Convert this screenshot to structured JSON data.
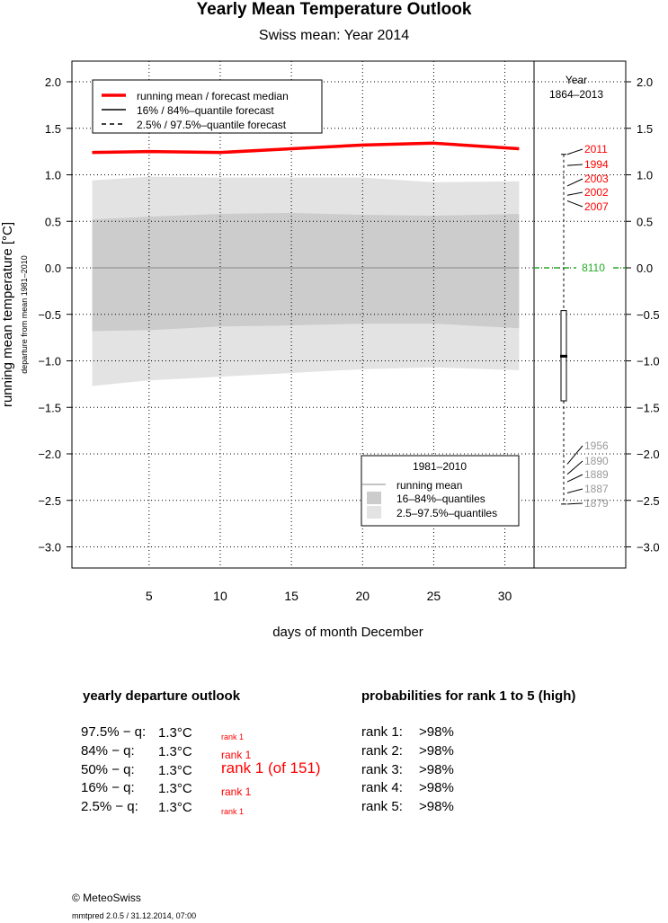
{
  "header": {
    "title": "Yearly Mean Temperature Outlook",
    "subtitle": "Swiss mean: Year 2014"
  },
  "chart_data": {
    "type": "area",
    "title": "Yearly Mean Temperature Outlook",
    "subtitle": "Swiss mean: Year 2014",
    "xlabel": "days of month December",
    "ylabel": "running mean temperature [°C]",
    "ylabel_sub": "departure from mean 1981–2010",
    "xlim": [
      0,
      32
    ],
    "ylim": [
      -3.2,
      2.2
    ],
    "x_ticks": [
      5,
      10,
      15,
      20,
      25,
      30
    ],
    "y_ticks": [
      2.0,
      1.5,
      1.0,
      0.5,
      0.0,
      -0.5,
      -1.0,
      -1.5,
      -2.0,
      -2.5,
      -3.0
    ],
    "y_tick_labels": [
      "2.0",
      "1.5",
      "1.0",
      "0.5",
      "0.0",
      "−0.5",
      "−1.0",
      "−1.5",
      "−2.0",
      "−2.5",
      "−3.0"
    ],
    "grid": true,
    "x": [
      1,
      5,
      10,
      15,
      20,
      25,
      31
    ],
    "series": [
      {
        "name": "running mean / forecast median",
        "color": "#ff0000",
        "values": [
          1.24,
          1.25,
          1.24,
          1.28,
          1.32,
          1.34,
          1.28
        ]
      },
      {
        "name": "running mean",
        "color": "#888888",
        "values": [
          0.0,
          0.0,
          0.0,
          0.0,
          0.0,
          0.0,
          0.0
        ]
      }
    ],
    "bands": [
      {
        "name": "2.5–97.5%–quantiles",
        "color": "#e3e3e3",
        "upper": [
          0.94,
          0.98,
          0.97,
          0.97,
          0.97,
          0.92,
          0.93
        ],
        "lower": [
          -1.27,
          -1.21,
          -1.17,
          -1.13,
          -1.09,
          -1.07,
          -1.1
        ]
      },
      {
        "name": "16–84%–quantiles",
        "color": "#cccccc",
        "upper": [
          0.52,
          0.55,
          0.58,
          0.59,
          0.57,
          0.56,
          0.58
        ],
        "lower": [
          -0.68,
          -0.67,
          -0.63,
          -0.62,
          -0.6,
          -0.6,
          -0.65
        ]
      }
    ],
    "legend_top": [
      {
        "label": "running mean / forecast median",
        "style": "red-thick"
      },
      {
        "label": "16% / 84%–quantile forecast",
        "style": "solid"
      },
      {
        "label": "2.5% / 97.5%–quantile forecast",
        "style": "dashed"
      }
    ],
    "legend_bottom": {
      "title": "1981–2010",
      "items": [
        {
          "label": "running mean",
          "style": "line"
        },
        {
          "label": "16–84%–quantiles",
          "style": "dark"
        },
        {
          "label": "2.5–97.5%–quantiles",
          "style": "light"
        }
      ]
    },
    "side_panel": {
      "title": "Year",
      "subtitle": "1864–2013",
      "box": {
        "whisker_high": 1.22,
        "q3": -0.46,
        "median": -0.95,
        "q1": -1.43,
        "whisker_low": -2.54
      },
      "count_label": "8110",
      "top_years": [
        {
          "year": "2011",
          "value": 1.22
        },
        {
          "year": "1994",
          "value": 1.1
        },
        {
          "year": "2003",
          "value": 0.88
        },
        {
          "year": "2002",
          "value": 0.78
        },
        {
          "year": "2007",
          "value": 0.72
        }
      ],
      "bottom_years": [
        {
          "year": "1956",
          "value": -2.11
        },
        {
          "year": "1890",
          "value": -2.22
        },
        {
          "year": "1889",
          "value": -2.3
        },
        {
          "year": "1887",
          "value": -2.42
        },
        {
          "year": "1879",
          "value": -2.54
        }
      ]
    }
  },
  "outlook": {
    "heading": "yearly departure outlook",
    "rows": [
      {
        "q": "97.5% − q:",
        "value": "1.3°C",
        "rank": "rank 1",
        "size": 9
      },
      {
        "q": "84% − q:",
        "value": "1.3°C",
        "rank": "rank 1",
        "size": 12
      },
      {
        "q": "50% − q:",
        "value": "1.3°C",
        "rank": "rank 1 (of 151)",
        "size": 17
      },
      {
        "q": "16% − q:",
        "value": "1.3°C",
        "rank": "rank 1",
        "size": 12
      },
      {
        "q": "2.5% − q:",
        "value": "1.3°C",
        "rank": "rank 1",
        "size": 9
      }
    ]
  },
  "probabilities": {
    "heading": "probabilities for rank 1 to 5 (high)",
    "rows": [
      {
        "label": "rank 1:",
        "value": ">98%"
      },
      {
        "label": "rank 2:",
        "value": ">98%"
      },
      {
        "label": "rank 3:",
        "value": ">98%"
      },
      {
        "label": "rank 4:",
        "value": ">98%"
      },
      {
        "label": "rank 5:",
        "value": ">98%"
      }
    ]
  },
  "footer": {
    "copyright": "© MeteoSwiss",
    "version": "mmtpred 2.0.5 / 31.12.2014, 07:00"
  }
}
